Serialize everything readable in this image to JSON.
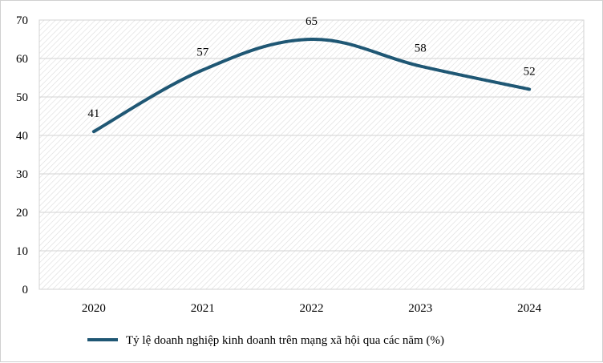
{
  "colors": {
    "series": "#1F5774",
    "grid": "#d3d3d3",
    "plot_hatch": "#dcdcdc"
  },
  "chart_data": {
    "type": "line",
    "x": [
      "2020",
      "2021",
      "2022",
      "2023",
      "2024"
    ],
    "series": [
      {
        "name": "Tỷ lệ doanh nghiệp kinh doanh trên mạng xã hội qua các năm (%)",
        "values": [
          41,
          57,
          65,
          58,
          52
        ]
      }
    ],
    "data_labels": [
      "41",
      "57",
      "65",
      "58",
      "52"
    ],
    "ylim": [
      0,
      70
    ],
    "yticks": [
      "0",
      "10",
      "20",
      "30",
      "40",
      "50",
      "60",
      "70"
    ],
    "grid": true,
    "legend": "bottom",
    "xlabel": "",
    "ylabel": "",
    "title": ""
  }
}
